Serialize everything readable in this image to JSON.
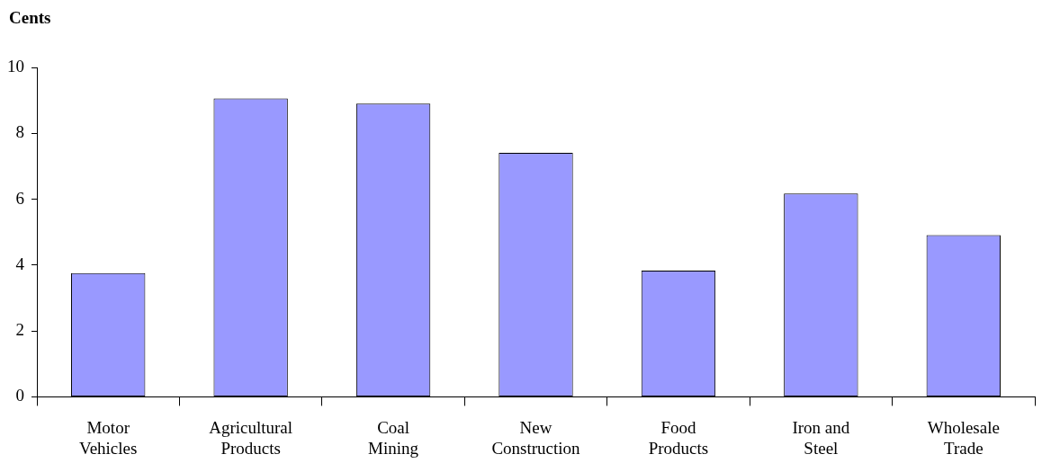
{
  "chart_data": {
    "type": "bar",
    "ylabel": "Cents",
    "categories": [
      "Motor Vehicles",
      "Agricultural Products",
      "Coal Mining",
      "New Construction",
      "Food Products",
      "Iron and Steel",
      "Wholesale Trade"
    ],
    "values": [
      3.76,
      9.06,
      8.9,
      7.41,
      3.83,
      6.17,
      4.91
    ],
    "color": "#9999ff",
    "ylim": [
      0,
      10
    ],
    "yticks": [
      0,
      2,
      4,
      6,
      8,
      10
    ],
    "grid": false,
    "legend": false
  }
}
